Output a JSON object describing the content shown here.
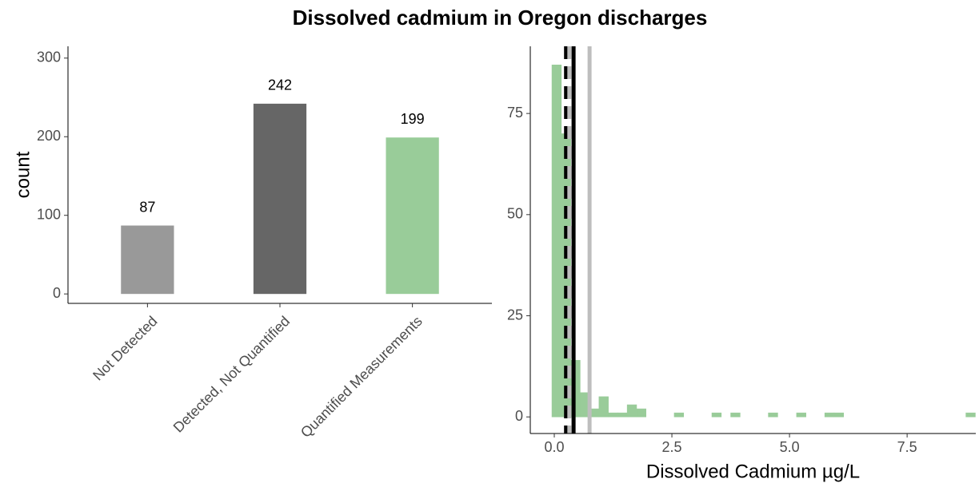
{
  "title": "Dissolved cadmium in Oregon discharges",
  "chart_data": [
    {
      "type": "bar",
      "categories": [
        "Not Detected",
        "Detected, Not Quantified",
        "Quantified Measurements"
      ],
      "values": [
        87,
        242,
        199
      ],
      "colors": [
        "#999999",
        "#666666",
        "#99cc99"
      ],
      "ylabel": "count",
      "ylim": [
        -12,
        315
      ],
      "yticks": [
        0,
        100,
        200,
        300
      ]
    },
    {
      "type": "histogram",
      "color": "#99cc99",
      "xlabel": "Dissolved Cadmium µg/L",
      "bins": [
        -0.05,
        0.15,
        0.35,
        0.55,
        0.75,
        0.95,
        1.15,
        1.35,
        1.55,
        1.75,
        1.95,
        2.15,
        2.35,
        2.55,
        2.75,
        2.95,
        3.15,
        3.35,
        3.55,
        3.75,
        3.95,
        4.15,
        4.35,
        4.55,
        4.75,
        4.95,
        5.15,
        5.35,
        5.55,
        5.75,
        5.95,
        6.15,
        6.35,
        6.55,
        6.75,
        6.95,
        7.15,
        7.35,
        7.55,
        7.75,
        7.95,
        8.15,
        8.35,
        8.55,
        8.75,
        8.95
      ],
      "values": [
        87,
        70,
        14,
        6,
        2,
        5,
        1,
        1,
        3,
        2,
        0,
        0,
        0,
        1,
        0,
        0,
        0,
        1,
        0,
        1,
        0,
        0,
        0,
        1,
        0,
        0,
        1,
        0,
        0,
        1,
        1,
        0,
        0,
        0,
        0,
        0,
        0,
        0,
        0,
        0,
        0,
        0,
        0,
        0,
        1
      ],
      "vlines": [
        {
          "x": 0.25,
          "color": "#000000",
          "dash": true
        },
        {
          "x": 0.32,
          "color": "#bebebe",
          "dash": true
        },
        {
          "x": 0.41,
          "color": "#000000",
          "dash": false
        },
        {
          "x": 0.75,
          "color": "#bebebe",
          "dash": false
        }
      ],
      "xlim": [
        -0.51,
        8.96
      ],
      "xticks": [
        {
          "value": 0,
          "label": "0.0"
        },
        2.5,
        {
          "value": 5,
          "label": "5.0"
        },
        7.5
      ],
      "ylim": [
        -4.1,
        91.6
      ],
      "yticks": [
        0,
        25,
        50,
        75
      ]
    }
  ]
}
